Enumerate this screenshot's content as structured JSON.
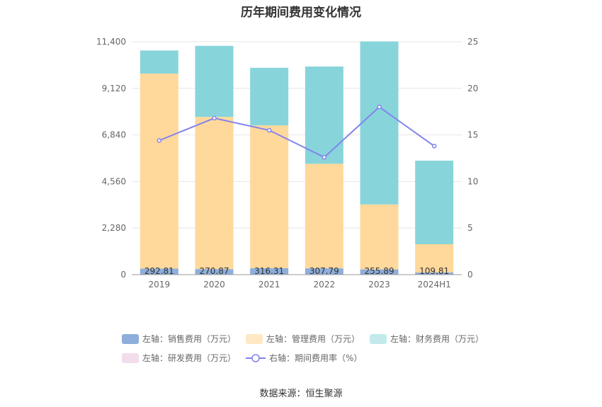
{
  "title": "历年期间费用变化情况",
  "source": "数据来源：恒生聚源",
  "chart_data": {
    "type": "bar",
    "stacked": true,
    "categories": [
      "2019",
      "2020",
      "2021",
      "2022",
      "2023",
      "2024H1"
    ],
    "left_axis": {
      "ticks": [
        "0",
        "2,280",
        "4,560",
        "6,840",
        "9,120",
        "11,400"
      ],
      "ylim": [
        0,
        11400
      ]
    },
    "right_axis": {
      "ticks": [
        "0",
        "5",
        "10",
        "15",
        "20",
        "25"
      ],
      "ylim": [
        0,
        25
      ]
    },
    "series": [
      {
        "name": "左轴：销售费用（万元）",
        "axis": "left",
        "color": "#8eaedb",
        "values": [
          292.81,
          270.87,
          316.31,
          307.79,
          255.89,
          109.81
        ],
        "labels": [
          "292.81",
          "270.87",
          "316.31",
          "307.79",
          "255.89",
          "109.81"
        ]
      },
      {
        "name": "左轴：管理费用（万元）",
        "axis": "left",
        "color": "#ffd89b",
        "values": [
          9550,
          7450,
          6990,
          5120,
          3180,
          1380
        ]
      },
      {
        "name": "左轴：财务费用（万元）",
        "axis": "left",
        "color": "#87d5da",
        "values": [
          1130,
          3480,
          2820,
          4760,
          7980,
          4090
        ]
      },
      {
        "name": "左轴：研发费用（万元）",
        "axis": "left",
        "color": "#f3dcec",
        "values": [
          0,
          0,
          0,
          0,
          0,
          0
        ]
      },
      {
        "name": "右轴：期间费用率（%）",
        "axis": "right",
        "type": "line",
        "color": "#8383ec",
        "values": [
          14.4,
          16.8,
          15.5,
          12.6,
          18.0,
          13.8
        ]
      }
    ],
    "grid": true,
    "legend_position": "bottom"
  }
}
